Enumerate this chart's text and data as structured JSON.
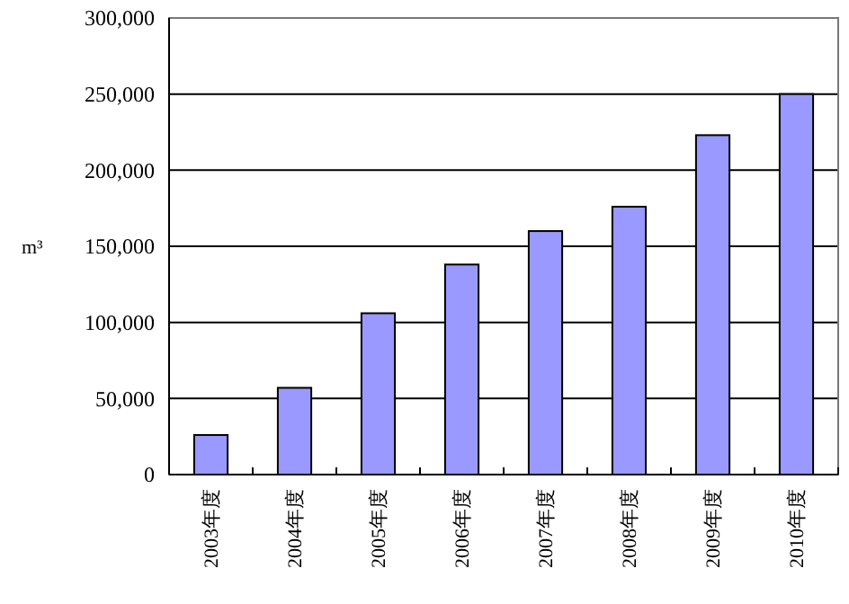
{
  "chart_data": {
    "type": "bar",
    "ylabel": "m³",
    "categories": [
      "2003年度",
      "2004年度",
      "2005年度",
      "2006年度",
      "2007年度",
      "2008年度",
      "2009年度",
      "2010年度"
    ],
    "values": [
      26000,
      57000,
      106000,
      138000,
      160000,
      176000,
      223000,
      250000
    ],
    "color": "#9999ff",
    "ylim": [
      0,
      300000
    ],
    "yticks": [
      {
        "value": 0,
        "label": "0"
      },
      {
        "value": 50000,
        "label": "50,000"
      },
      {
        "value": 100000,
        "label": "100,000"
      },
      {
        "value": 150000,
        "label": "150,000"
      },
      {
        "value": 200000,
        "label": "200,000"
      },
      {
        "value": 250000,
        "label": "250,000"
      },
      {
        "value": 300000,
        "label": "300,000"
      }
    ],
    "grid": "y"
  }
}
